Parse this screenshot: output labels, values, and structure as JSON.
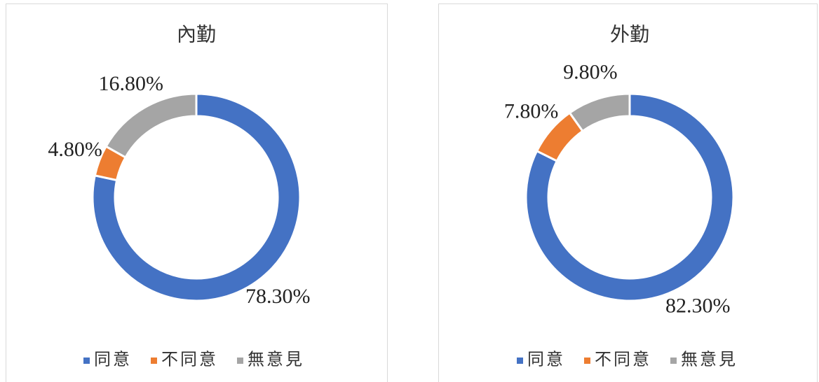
{
  "chart_data": [
    {
      "type": "donut",
      "title": "內勤",
      "categories": [
        "同意",
        "不同意",
        "無意見"
      ],
      "values": [
        78.3,
        4.8,
        16.8
      ],
      "value_labels": [
        "78.30%",
        "4.80%",
        "16.80%"
      ],
      "colors": [
        "#4472c4",
        "#ed7d31",
        "#a5a5a5"
      ]
    },
    {
      "type": "donut",
      "title": "外勤",
      "categories": [
        "同意",
        "不同意",
        "無意見"
      ],
      "values": [
        82.3,
        7.8,
        9.8
      ],
      "value_labels": [
        "82.30%",
        "7.80%",
        "9.80%"
      ],
      "colors": [
        "#4472c4",
        "#ed7d31",
        "#a5a5a5"
      ]
    }
  ]
}
